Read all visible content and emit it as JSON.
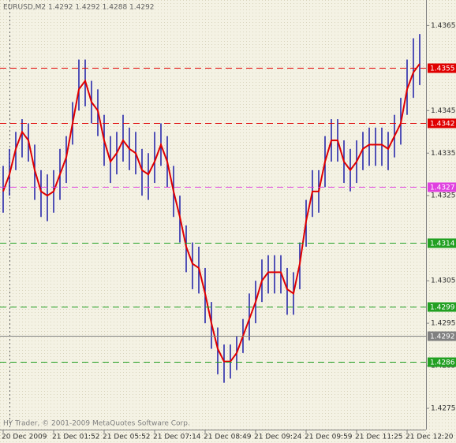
{
  "chart_data": {
    "type": "hilo",
    "title": "EURUSD,M2  1.4292 1.4292 1.4288 1.4292",
    "footer": "HY Trader, © 2001-2009 MetaQuotes Software Corp.",
    "categories": [
      "20 Dec 2009",
      null,
      null,
      null,
      null,
      null,
      null,
      null,
      "21 Dec 01:52",
      null,
      null,
      null,
      null,
      null,
      null,
      null,
      "21 Dec 05:52",
      null,
      null,
      null,
      null,
      null,
      null,
      null,
      "21 Dec 07:14",
      null,
      null,
      null,
      null,
      null,
      null,
      null,
      "21 Dec 08:49",
      null,
      null,
      null,
      null,
      null,
      null,
      null,
      "21 Dec 09:24",
      null,
      null,
      null,
      null,
      null,
      null,
      null,
      "21 Dec 09:59",
      null,
      null,
      null,
      null,
      null,
      null,
      null,
      "21 Dec 11:25",
      null,
      null,
      null,
      null,
      null,
      null,
      null,
      "21 Dec 12:20",
      null,
      null
    ],
    "bar_color": "#1c1ca8",
    "high": [
      1.4332,
      1.4336,
      1.434,
      1.4343,
      1.4342,
      1.4337,
      1.4331,
      1.433,
      1.4331,
      1.4336,
      1.4339,
      1.4347,
      1.4357,
      1.4357,
      1.4352,
      1.435,
      1.4344,
      1.4339,
      1.434,
      1.4344,
      1.4341,
      1.434,
      1.4336,
      1.4335,
      1.434,
      1.4342,
      1.4339,
      1.4332,
      1.4325,
      1.4318,
      1.4314,
      1.4313,
      1.4308,
      1.43,
      1.4294,
      1.429,
      1.429,
      1.4292,
      1.4296,
      1.4302,
      1.4305,
      1.431,
      1.4311,
      1.4311,
      1.4311,
      1.4308,
      1.4307,
      1.4314,
      1.4324,
      1.4331,
      1.4331,
      1.4339,
      1.4343,
      1.4343,
      1.4338,
      1.4336,
      1.4338,
      1.434,
      1.4341,
      1.4341,
      1.4341,
      1.434,
      1.4344,
      1.4348,
      1.4357,
      1.4362,
      1.4363
    ],
    "low": [
      1.4321,
      1.4325,
      1.4331,
      1.4334,
      1.4333,
      1.4324,
      1.432,
      1.4319,
      1.4321,
      1.4324,
      1.4328,
      1.4337,
      1.4345,
      1.4346,
      1.4342,
      1.4339,
      1.4332,
      1.4328,
      1.433,
      1.4333,
      1.4331,
      1.433,
      1.4325,
      1.4324,
      1.4328,
      1.4332,
      1.4327,
      1.432,
      1.4314,
      1.4307,
      1.4303,
      1.4302,
      1.4295,
      1.4289,
      1.4283,
      1.4281,
      1.4282,
      1.4284,
      1.4288,
      1.4291,
      1.4295,
      1.43,
      1.4302,
      1.4302,
      1.4302,
      1.4297,
      1.4297,
      1.4303,
      1.4313,
      1.432,
      1.4321,
      1.4327,
      1.4333,
      1.4333,
      1.4328,
      1.4326,
      1.4328,
      1.4331,
      1.4332,
      1.4332,
      1.4332,
      1.4331,
      1.4334,
      1.4337,
      1.4344,
      1.4348,
      1.4351
    ],
    "line": {
      "color": "#e00000",
      "values": [
        1.4326,
        1.433,
        1.4336,
        1.434,
        1.4338,
        1.4331,
        1.4326,
        1.4325,
        1.4326,
        1.433,
        1.4334,
        1.4342,
        1.435,
        1.4352,
        1.4347,
        1.4345,
        1.4338,
        1.4333,
        1.4335,
        1.4338,
        1.4336,
        1.4335,
        1.4331,
        1.433,
        1.4333,
        1.4337,
        1.4333,
        1.4326,
        1.432,
        1.4313,
        1.4309,
        1.4308,
        1.4302,
        1.4295,
        1.4289,
        1.4286,
        1.4286,
        1.4288,
        1.4292,
        1.4296,
        1.43,
        1.4305,
        1.4307,
        1.4307,
        1.4307,
        1.4303,
        1.4302,
        1.4309,
        1.4319,
        1.4326,
        1.4326,
        1.4333,
        1.4338,
        1.4338,
        1.4333,
        1.4331,
        1.4333,
        1.4336,
        1.4337,
        1.4337,
        1.4337,
        1.4336,
        1.4339,
        1.4342,
        1.435,
        1.4354,
        1.4356
      ]
    },
    "levels": [
      {
        "value": 1.4355,
        "color": "#e00000",
        "dashed": true
      },
      {
        "value": 1.4342,
        "color": "#e00000",
        "dashed": true
      },
      {
        "value": 1.4327,
        "color": "#e040e0",
        "dashed": true
      },
      {
        "value": 1.4314,
        "color": "#22a022",
        "dashed": true
      },
      {
        "value": 1.4299,
        "color": "#22a022",
        "dashed": true
      },
      {
        "value": 1.4292,
        "color": "#808080",
        "dashed": false
      },
      {
        "value": 1.4286,
        "color": "#22a022",
        "dashed": true
      }
    ],
    "ylim": [
      1.427,
      1.4371
    ],
    "yticks": [
      1.4365,
      1.4345,
      1.4335,
      1.4325,
      1.4305,
      1.4295,
      1.4285,
      1.4275
    ]
  }
}
